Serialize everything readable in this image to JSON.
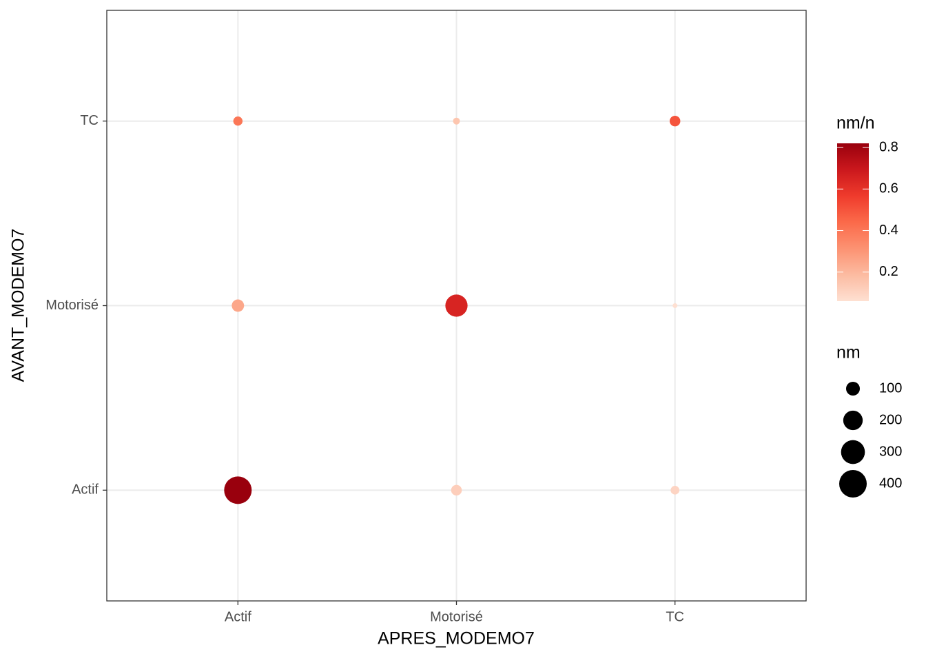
{
  "chart_data": {
    "type": "scatter",
    "x_label": "APRES_MODEMO7",
    "y_label": "AVANT_MODEMO7",
    "x_categories": [
      "Actif",
      "Motorisé",
      "TC"
    ],
    "y_categories": [
      "Actif",
      "Motorisé",
      "TC"
    ],
    "x": [
      "Actif",
      "Actif",
      "Actif",
      "Motorisé",
      "Motorisé",
      "Motorisé",
      "TC",
      "TC",
      "TC"
    ],
    "y": [
      "Actif",
      "Motorisé",
      "TC",
      "Actif",
      "Motorisé",
      "TC",
      "Actif",
      "Motorisé",
      "TC"
    ],
    "nm": [
      400,
      80,
      45,
      60,
      260,
      25,
      40,
      12,
      60
    ],
    "nm_n": [
      0.82,
      0.25,
      0.4,
      0.12,
      0.65,
      0.15,
      0.1,
      0.06,
      0.5
    ],
    "color_title": "nm/n",
    "color_lim": [
      0.06,
      0.82
    ],
    "color_ticks": [
      0.2,
      0.4,
      0.6,
      0.8
    ],
    "palette": [
      "#FEE0D2",
      "#FCBBA1",
      "#FC9272",
      "#FB6A4A",
      "#EF3B2C",
      "#CB181D",
      "#99000D"
    ],
    "size_title": "nm",
    "size_breaks": [
      100,
      200,
      300,
      400
    ],
    "grid": true
  }
}
